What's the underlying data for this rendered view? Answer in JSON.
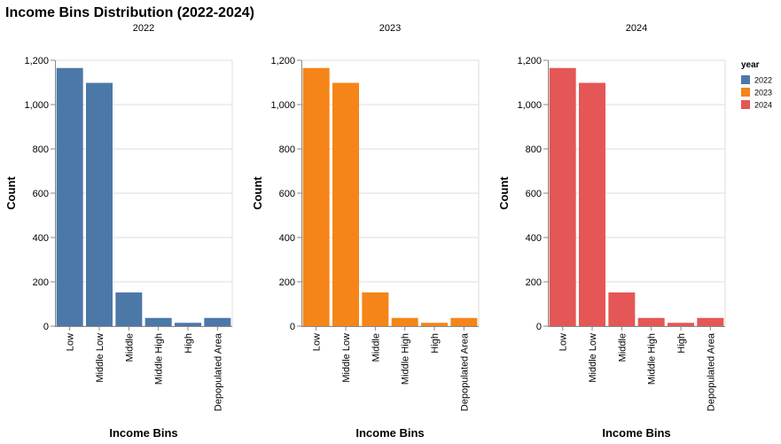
{
  "chart_data": {
    "type": "bar",
    "title": "Income Bins Distribution (2022-2024)",
    "xlabel": "Income Bins",
    "ylabel": "Count",
    "ylim": [
      0,
      1200
    ],
    "yticks": [
      0,
      200,
      400,
      600,
      800,
      1000,
      1200
    ],
    "ytick_labels": [
      "0",
      "200",
      "400",
      "600",
      "800",
      "1,000",
      "1,200"
    ],
    "grid": true,
    "categories": [
      "Low",
      "Middle Low",
      "Middle",
      "Middle High",
      "High",
      "Depopulated Area"
    ],
    "legend": {
      "title": "year",
      "placement": "right"
    },
    "series": [
      {
        "name": "2022",
        "color": "#4c78a8",
        "values": [
          1165,
          1098,
          152,
          37,
          15,
          37
        ]
      },
      {
        "name": "2023",
        "color": "#f58518",
        "values": [
          1165,
          1098,
          152,
          37,
          15,
          37
        ]
      },
      {
        "name": "2024",
        "color": "#e45756",
        "values": [
          1165,
          1098,
          152,
          37,
          15,
          37
        ]
      }
    ]
  }
}
